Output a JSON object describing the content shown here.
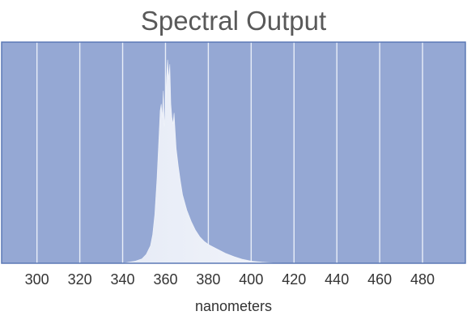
{
  "chart_data": {
    "type": "area",
    "title": "Spectral Output",
    "xlabel": "nanometers",
    "ylabel": "",
    "xlim": [
      283.5,
      500
    ],
    "ylim": [
      0,
      1
    ],
    "x_ticks": [
      300,
      320,
      340,
      360,
      380,
      400,
      420,
      440,
      460,
      480
    ],
    "grid": true,
    "legend": "none",
    "colors": {
      "plot_background": "#95a8d4",
      "plot_border": "#5b79b5",
      "grid": "#e9eef8",
      "area_fill": "#e6ebf6",
      "area_fill_light": "#f3f5fb"
    },
    "series": [
      {
        "x": [
          340,
          343,
          346,
          349,
          351,
          353,
          354,
          355,
          356,
          357,
          357.5,
          358,
          358.5,
          359,
          359.5,
          360,
          360.5,
          361,
          361.5,
          362,
          362.5,
          363,
          363.5,
          364,
          364.5,
          365,
          366,
          367,
          368,
          370,
          372,
          374,
          376,
          378,
          380,
          384,
          388,
          392,
          396,
          400,
          405,
          410,
          420
        ],
        "y": [
          0.0,
          0.005,
          0.01,
          0.02,
          0.04,
          0.08,
          0.13,
          0.22,
          0.38,
          0.58,
          0.69,
          0.72,
          0.66,
          0.78,
          0.62,
          0.72,
          0.84,
          0.92,
          0.83,
          0.9,
          0.72,
          0.66,
          0.63,
          0.68,
          0.6,
          0.52,
          0.44,
          0.37,
          0.31,
          0.24,
          0.19,
          0.15,
          0.12,
          0.1,
          0.085,
          0.065,
          0.045,
          0.03,
          0.018,
          0.01,
          0.005,
          0.002,
          0.0
        ]
      }
    ]
  }
}
